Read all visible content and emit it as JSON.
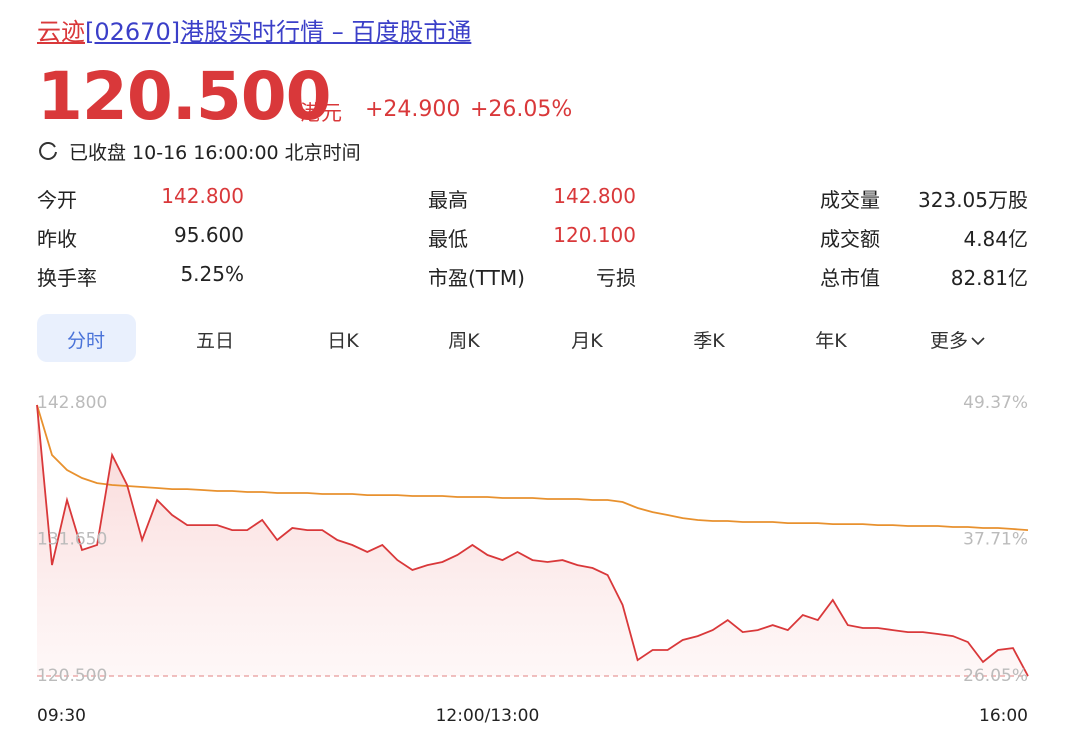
{
  "header": {
    "title_link": "云迹",
    "title_rest": "[02670]港股实时行情 – 百度股市通",
    "price": "120.500",
    "currency": "港元",
    "change": "+24.900",
    "change_pct": "+26.05%",
    "status": "已收盘 10-16 16:00:00 北京时间"
  },
  "stats": [
    [
      {
        "label": "今开",
        "value": "142.800"
      },
      {
        "label": "最高",
        "value": "142.800"
      },
      {
        "label": "成交量",
        "value": "323.05万股"
      }
    ],
    [
      {
        "label": "昨收",
        "value": "95.600"
      },
      {
        "label": "最低",
        "value": "120.100"
      },
      {
        "label": "成交额",
        "value": "4.84亿"
      }
    ],
    [
      {
        "label": "换手率",
        "value": "5.25%"
      },
      {
        "label": "市盈(TTM)",
        "value": "亏损"
      },
      {
        "label": "总市值",
        "value": "82.81亿"
      }
    ]
  ],
  "tabs": [
    "分时",
    "五日",
    "日K",
    "周K",
    "月K",
    "季K",
    "年K",
    "更多"
  ],
  "chart_data": {
    "type": "line",
    "categories": [
      "09:30",
      null,
      null,
      null,
      null,
      null,
      null,
      null,
      null,
      null,
      null,
      null,
      null,
      null,
      null,
      null,
      null,
      null,
      null,
      null,
      null,
      null,
      null,
      null,
      null,
      null,
      null,
      null,
      null,
      null,
      "12:00/13:00",
      null,
      null,
      null,
      null,
      null,
      null,
      null,
      null,
      null,
      null,
      null,
      null,
      null,
      null,
      null,
      null,
      null,
      null,
      null,
      null,
      null,
      null,
      null,
      null,
      null,
      null,
      null,
      null,
      null,
      null,
      null,
      null,
      null,
      null,
      null,
      "16:00"
    ],
    "series": [
      {
        "name": "price",
        "color": "#d9383a",
        "values": [
          142.64,
          129.56,
          134.88,
          130.79,
          131.2,
          138.55,
          136.1,
          131.61,
          134.88,
          133.65,
          132.83,
          132.83,
          132.83,
          132.42,
          132.42,
          133.24,
          131.61,
          132.59,
          132.42,
          132.42,
          131.61,
          131.2,
          130.63,
          131.2,
          129.97,
          129.16,
          129.56,
          129.81,
          130.38,
          131.2,
          130.38,
          129.97,
          130.63,
          129.97,
          129.81,
          129.97,
          129.56,
          129.32,
          128.75,
          126.3,
          121.8,
          122.62,
          122.62,
          123.44,
          123.76,
          124.25,
          125.07,
          124.09,
          124.25,
          124.66,
          124.25,
          125.48,
          125.07,
          126.71,
          124.66,
          124.42,
          124.42,
          124.25,
          124.09,
          124.09,
          123.93,
          123.76,
          123.27,
          121.64,
          122.62,
          122.78,
          120.5
        ]
      },
      {
        "name": "average",
        "color": "#e8912e",
        "values": [
          142.64,
          138.55,
          137.33,
          136.67,
          136.26,
          136.1,
          136.02,
          135.94,
          135.86,
          135.77,
          135.77,
          135.69,
          135.61,
          135.61,
          135.53,
          135.53,
          135.45,
          135.45,
          135.45,
          135.37,
          135.37,
          135.37,
          135.28,
          135.28,
          135.28,
          135.2,
          135.2,
          135.2,
          135.12,
          135.12,
          135.12,
          135.04,
          135.04,
          135.04,
          134.96,
          134.96,
          134.96,
          134.88,
          134.88,
          134.71,
          134.22,
          133.89,
          133.65,
          133.4,
          133.24,
          133.16,
          133.16,
          133.08,
          133.08,
          133.08,
          132.99,
          132.99,
          132.99,
          132.91,
          132.91,
          132.91,
          132.83,
          132.83,
          132.75,
          132.75,
          132.75,
          132.67,
          132.67,
          132.59,
          132.59,
          132.51,
          132.42
        ]
      }
    ],
    "ylim": [
      120.5,
      142.8
    ],
    "yticks": [
      {
        "value": 120.5,
        "label": "120.500"
      },
      {
        "value": 131.65,
        "label": "131.650"
      },
      {
        "value": 142.8,
        "label": "142.800"
      }
    ],
    "y2lim": [
      26.05,
      49.37
    ],
    "y2ticks": [
      {
        "value": 26.05,
        "label": "26.05%"
      },
      {
        "value": 37.71,
        "label": "37.71%"
      },
      {
        "value": 49.37,
        "label": "49.37%"
      }
    ]
  }
}
